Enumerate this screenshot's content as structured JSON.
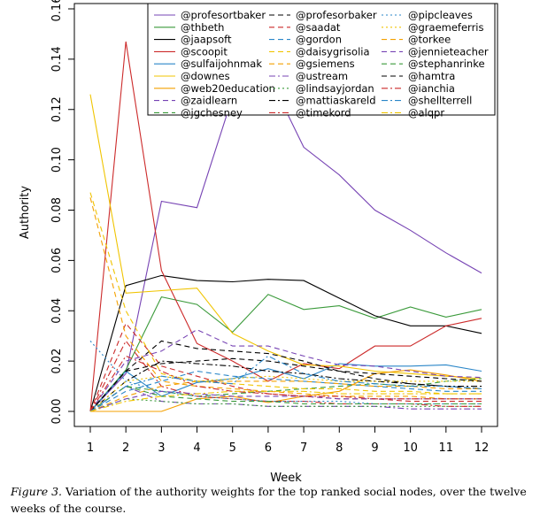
{
  "chart_data": {
    "type": "line",
    "xlabel": "Week",
    "ylabel": "Authority",
    "x": [
      1,
      2,
      3,
      4,
      5,
      6,
      7,
      8,
      9,
      10,
      11,
      12
    ],
    "xticks": [
      1,
      2,
      3,
      4,
      5,
      6,
      7,
      8,
      9,
      10,
      11,
      12
    ],
    "yticks": [
      0.0,
      0.02,
      0.04,
      0.06,
      0.08,
      0.1,
      0.12,
      0.14,
      0.16
    ],
    "ytick_labels": [
      "0.00",
      "0.02",
      "0.04",
      "0.06",
      "0.08",
      "0.10",
      "0.12",
      "0.14",
      "0.16"
    ],
    "xlim": [
      1,
      12
    ],
    "ylim": [
      0,
      0.16
    ],
    "legend_position": "top-right",
    "series": [
      {
        "name": "@profesortbaker",
        "color": "#7744b4",
        "dash": "solid",
        "values": [
          0.0,
          0.015,
          0.0835,
          0.081,
          0.125,
          0.134,
          0.105,
          0.094,
          0.08,
          0.072,
          0.063,
          0.055
        ]
      },
      {
        "name": "@thbeth",
        "color": "#3a9a3a",
        "dash": "solid",
        "values": [
          0.0,
          0.0165,
          0.0455,
          0.0425,
          0.0315,
          0.0465,
          0.0405,
          0.042,
          0.037,
          0.0415,
          0.0375,
          0.0405
        ]
      },
      {
        "name": "@jaapsoft",
        "color": "#000000",
        "dash": "solid",
        "values": [
          0.0,
          0.05,
          0.054,
          0.052,
          0.0515,
          0.0525,
          0.052,
          0.045,
          0.038,
          0.034,
          0.034,
          0.031
        ]
      },
      {
        "name": "@scoopit",
        "color": "#cc2a2a",
        "dash": "solid",
        "values": [
          0.0,
          0.147,
          0.056,
          0.027,
          0.02,
          0.012,
          0.019,
          0.017,
          0.026,
          0.026,
          0.034,
          0.037
        ]
      },
      {
        "name": "@sulfaijohnmak",
        "color": "#2a86c8",
        "dash": "solid",
        "values": [
          0.0,
          0.016,
          0.006,
          0.0115,
          0.013,
          0.017,
          0.013,
          0.019,
          0.018,
          0.018,
          0.0185,
          0.016
        ]
      },
      {
        "name": "@downes",
        "color": "#f0c400",
        "dash": "solid",
        "values": [
          0.126,
          0.047,
          0.048,
          0.049,
          0.031,
          0.024,
          0.0185,
          0.018,
          0.016,
          0.015,
          0.014,
          0.013
        ]
      },
      {
        "name": "@web20education",
        "color": "#f4a000",
        "dash": "solid",
        "values": [
          0.0,
          0.0,
          0.0,
          0.005,
          0.006,
          0.0035,
          0.006,
          0.008,
          0.015,
          0.0165,
          0.0145,
          0.012
        ]
      },
      {
        "name": "@zaidlearn",
        "color": "#7744b4",
        "dash": "dashed",
        "values": [
          0.0,
          0.02,
          0.024,
          0.0325,
          0.026,
          0.026,
          0.022,
          0.0185,
          0.018,
          0.016,
          0.014,
          0.0135
        ]
      },
      {
        "name": "@jgchesney",
        "color": "#3a9a3a",
        "dash": "dashed",
        "values": [
          0.0,
          0.01,
          0.008,
          0.006,
          0.007,
          0.008,
          0.009,
          0.01,
          0.011,
          0.01,
          0.012,
          0.013
        ]
      },
      {
        "name": "@profesorbaker",
        "color": "#000000",
        "dash": "dashed",
        "values": [
          0.0,
          0.016,
          0.028,
          0.025,
          0.024,
          0.023,
          0.02,
          0.016,
          0.013,
          0.011,
          0.01,
          0.009
        ]
      },
      {
        "name": "@saadat",
        "color": "#cc2a2a",
        "dash": "dashed",
        "values": [
          0.0,
          0.035,
          0.018,
          0.014,
          0.01,
          0.007,
          0.006,
          0.005,
          0.005,
          0.004,
          0.004,
          0.004
        ]
      },
      {
        "name": "@gordon",
        "color": "#2a86c8",
        "dash": "dashed",
        "values": [
          0.0,
          0.008,
          0.012,
          0.016,
          0.014,
          0.013,
          0.012,
          0.011,
          0.01,
          0.009,
          0.008,
          0.008
        ]
      },
      {
        "name": "@daisygrisolia",
        "color": "#f0c400",
        "dash": "dashed",
        "values": [
          0.087,
          0.04,
          0.015,
          0.012,
          0.011,
          0.01,
          0.009,
          0.009,
          0.008,
          0.008,
          0.007,
          0.007
        ]
      },
      {
        "name": "@gsiemens",
        "color": "#f4a000",
        "dash": "dashed",
        "values": [
          0.085,
          0.03,
          0.012,
          0.01,
          0.009,
          0.008,
          0.007,
          0.006,
          0.006,
          0.006,
          0.005,
          0.005
        ]
      },
      {
        "name": "@ustream",
        "color": "#7744b4",
        "dash": "dashdot",
        "values": [
          0.0,
          0.01,
          0.004,
          0.003,
          0.003,
          0.002,
          0.002,
          0.002,
          0.002,
          0.001,
          0.001,
          0.001
        ]
      },
      {
        "name": "@lindsayjordan",
        "color": "#3a9a3a",
        "dash": "dotted",
        "values": [
          0.0,
          0.005,
          0.004,
          0.003,
          0.003,
          0.002,
          0.002,
          0.002,
          0.002,
          0.002,
          0.002,
          0.002
        ]
      },
      {
        "name": "@mattiaskareld",
        "color": "#000000",
        "dash": "dashdot",
        "values": [
          0.0,
          0.012,
          0.02,
          0.019,
          0.018,
          0.016,
          0.015,
          0.013,
          0.012,
          0.011,
          0.01,
          0.01
        ]
      },
      {
        "name": "@timekord",
        "color": "#cc2a2a",
        "dash": "dashdot",
        "values": [
          0.0,
          0.028,
          0.01,
          0.006,
          0.005,
          0.004,
          0.004,
          0.003,
          0.003,
          0.003,
          0.002,
          0.002
        ]
      },
      {
        "name": "@pipcleaves",
        "color": "#2a86c8",
        "dash": "dotted",
        "values": [
          0.028,
          0.012,
          0.008,
          0.006,
          0.005,
          0.004,
          0.004,
          0.004,
          0.003,
          0.003,
          0.003,
          0.003
        ]
      },
      {
        "name": "@graemeferris",
        "color": "#f0c400",
        "dash": "dotted",
        "values": [
          0.0,
          0.012,
          0.014,
          0.012,
          0.013,
          0.014,
          0.013,
          0.012,
          0.012,
          0.012,
          0.012,
          0.012
        ]
      },
      {
        "name": "@torkee",
        "color": "#f4a000",
        "dash": "dashed",
        "values": [
          0.0,
          0.006,
          0.01,
          0.012,
          0.012,
          0.012,
          0.012,
          0.011,
          0.01,
          0.01,
          0.009,
          0.009
        ]
      },
      {
        "name": "@jennieteacher",
        "color": "#7744b4",
        "dash": "dashed",
        "values": [
          0.0,
          0.005,
          0.008,
          0.007,
          0.006,
          0.006,
          0.006,
          0.005,
          0.005,
          0.005,
          0.005,
          0.005
        ]
      },
      {
        "name": "@stephanrinke",
        "color": "#3a9a3a",
        "dash": "dashed",
        "values": [
          0.0,
          0.01,
          0.006,
          0.005,
          0.004,
          0.004,
          0.003,
          0.003,
          0.003,
          0.003,
          0.003,
          0.003
        ]
      },
      {
        "name": "@hamtra",
        "color": "#000000",
        "dash": "dashed",
        "values": [
          0.0,
          0.016,
          0.019,
          0.02,
          0.021,
          0.02,
          0.018,
          0.016,
          0.015,
          0.014,
          0.013,
          0.012
        ]
      },
      {
        "name": "@ianchia",
        "color": "#cc2a2a",
        "dash": "dashdot",
        "values": [
          0.0,
          0.022,
          0.016,
          0.01,
          0.008,
          0.007,
          0.006,
          0.006,
          0.005,
          0.005,
          0.005,
          0.005
        ]
      },
      {
        "name": "@shellterrell",
        "color": "#2a86c8",
        "dash": "dashdot",
        "values": [
          0.0,
          0.01,
          0.014,
          0.012,
          0.011,
          0.022,
          0.015,
          0.012,
          0.011,
          0.01,
          0.01,
          0.009
        ]
      },
      {
        "name": "@alqpr",
        "color": "#f0c400",
        "dash": "dashdot",
        "values": [
          0.0,
          0.004,
          0.006,
          0.007,
          0.008,
          0.008,
          0.008,
          0.007,
          0.007,
          0.007,
          0.007,
          0.007
        ]
      }
    ]
  },
  "caption": {
    "label": "Figure 3.",
    "text": " Variation of the authority weights for the top ranked social nodes, over the twelve weeks of the course."
  }
}
